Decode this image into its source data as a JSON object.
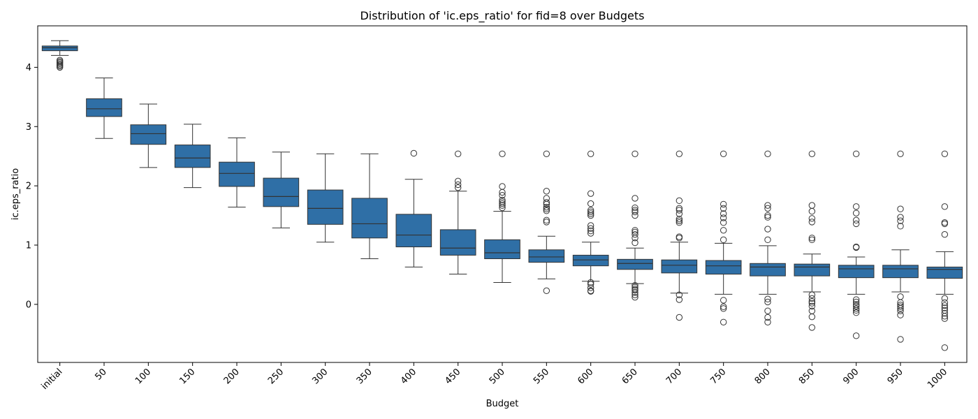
{
  "chart_data": {
    "type": "box",
    "title": "Distribution of 'ic.eps_ratio' for fid=8 over Budgets",
    "xlabel": "Budget",
    "ylabel": "ic.eps_ratio",
    "ylim": [
      -0.98,
      4.7
    ],
    "yticks": [
      "0",
      "1",
      "2",
      "3",
      "4"
    ],
    "box_color": "#2f6fa6",
    "line_color": "#333333",
    "categories": [
      "initial",
      "50",
      "100",
      "150",
      "200",
      "250",
      "300",
      "350",
      "400",
      "450",
      "500",
      "550",
      "600",
      "650",
      "700",
      "750",
      "800",
      "850",
      "900",
      "950",
      "1000"
    ],
    "boxes": [
      {
        "whislo": 4.2,
        "q1": 4.28,
        "med": 4.33,
        "q3": 4.36,
        "whishi": 4.45,
        "fliers": [
          4.12,
          4.1,
          4.08,
          4.06,
          4.04,
          4.02,
          4.0
        ]
      },
      {
        "whislo": 2.8,
        "q1": 3.17,
        "med": 3.3,
        "q3": 3.47,
        "whishi": 3.82,
        "fliers": []
      },
      {
        "whislo": 2.31,
        "q1": 2.7,
        "med": 2.88,
        "q3": 3.03,
        "whishi": 3.38,
        "fliers": []
      },
      {
        "whislo": 1.97,
        "q1": 2.31,
        "med": 2.47,
        "q3": 2.69,
        "whishi": 3.04,
        "fliers": []
      },
      {
        "whislo": 1.64,
        "q1": 1.99,
        "med": 2.21,
        "q3": 2.4,
        "whishi": 2.81,
        "fliers": []
      },
      {
        "whislo": 1.29,
        "q1": 1.65,
        "med": 1.82,
        "q3": 2.13,
        "whishi": 2.57,
        "fliers": []
      },
      {
        "whislo": 1.05,
        "q1": 1.35,
        "med": 1.62,
        "q3": 1.93,
        "whishi": 2.54,
        "fliers": []
      },
      {
        "whislo": 0.77,
        "q1": 1.12,
        "med": 1.36,
        "q3": 1.79,
        "whishi": 2.54,
        "fliers": []
      },
      {
        "whislo": 0.63,
        "q1": 0.97,
        "med": 1.17,
        "q3": 1.52,
        "whishi": 2.11,
        "fliers": [
          2.55
        ]
      },
      {
        "whislo": 0.51,
        "q1": 0.83,
        "med": 0.95,
        "q3": 1.26,
        "whishi": 1.91,
        "fliers": [
          2.54,
          2.08,
          2.02,
          1.97
        ]
      },
      {
        "whislo": 0.37,
        "q1": 0.77,
        "med": 0.87,
        "q3": 1.09,
        "whishi": 1.57,
        "fliers": [
          2.54,
          1.99,
          1.89,
          1.84,
          1.76,
          1.73,
          1.7,
          1.67,
          1.63
        ]
      },
      {
        "whislo": 0.43,
        "q1": 0.71,
        "med": 0.8,
        "q3": 0.92,
        "whishi": 1.15,
        "fliers": [
          2.54,
          1.91,
          1.79,
          1.72,
          1.69,
          1.64,
          1.61,
          1.58,
          1.42,
          1.39,
          0.23
        ]
      },
      {
        "whislo": 0.39,
        "q1": 0.65,
        "med": 0.75,
        "q3": 0.83,
        "whishi": 1.05,
        "fliers": [
          2.54,
          1.87,
          1.7,
          1.59,
          1.56,
          1.53,
          1.5,
          1.33,
          1.28,
          1.24,
          1.2,
          0.37,
          0.34,
          0.28,
          0.23,
          0.22
        ]
      },
      {
        "whislo": 0.35,
        "q1": 0.59,
        "med": 0.69,
        "q3": 0.76,
        "whishi": 0.95,
        "fliers": [
          2.54,
          1.79,
          1.63,
          1.59,
          1.56,
          1.5,
          1.25,
          1.22,
          1.18,
          1.12,
          1.04,
          0.32,
          0.29,
          0.26,
          0.24,
          0.2,
          0.16,
          0.12
        ]
      },
      {
        "whislo": 0.19,
        "q1": 0.53,
        "med": 0.66,
        "q3": 0.75,
        "whishi": 1.05,
        "fliers": [
          2.54,
          1.75,
          1.62,
          1.59,
          1.53,
          1.44,
          1.41,
          1.38,
          1.14,
          1.12,
          0.16,
          0.08,
          -0.22
        ]
      },
      {
        "whislo": 0.17,
        "q1": 0.51,
        "med": 0.65,
        "q3": 0.74,
        "whishi": 1.03,
        "fliers": [
          2.54,
          1.69,
          1.62,
          1.53,
          1.46,
          1.38,
          1.25,
          1.09,
          0.07,
          -0.04,
          -0.07,
          -0.3
        ]
      },
      {
        "whislo": 0.17,
        "q1": 0.48,
        "med": 0.63,
        "q3": 0.69,
        "whishi": 0.99,
        "fliers": [
          2.54,
          1.67,
          1.62,
          1.5,
          1.47,
          1.27,
          1.09,
          0.09,
          0.04,
          -0.11,
          -0.22,
          -0.3
        ]
      },
      {
        "whislo": 0.21,
        "q1": 0.48,
        "med": 0.63,
        "q3": 0.68,
        "whishi": 0.85,
        "fliers": [
          2.54,
          1.67,
          1.57,
          1.45,
          1.39,
          1.12,
          1.09,
          0.16,
          0.1,
          0.05,
          0.02,
          -0.03,
          -0.11,
          -0.21,
          -0.39
        ]
      },
      {
        "whislo": 0.17,
        "q1": 0.45,
        "med": 0.6,
        "q3": 0.66,
        "whishi": 0.8,
        "fliers": [
          2.54,
          1.65,
          1.54,
          1.42,
          1.36,
          0.97,
          0.96,
          0.08,
          0.04,
          0.0,
          -0.03,
          -0.07,
          -0.1,
          -0.14,
          -0.53
        ]
      },
      {
        "whislo": 0.21,
        "q1": 0.45,
        "med": 0.6,
        "q3": 0.66,
        "whishi": 0.92,
        "fliers": [
          2.54,
          1.61,
          1.47,
          1.41,
          1.32,
          0.13,
          0.03,
          -0.01,
          -0.04,
          -0.07,
          -0.11,
          -0.18,
          -0.59
        ]
      },
      {
        "whislo": 0.17,
        "q1": 0.44,
        "med": 0.59,
        "q3": 0.63,
        "whishi": 0.89,
        "fliers": [
          2.54,
          1.65,
          1.38,
          1.36,
          1.18,
          0.1,
          0.03,
          -0.02,
          -0.06,
          -0.1,
          -0.15,
          -0.2,
          -0.24,
          -0.73
        ]
      }
    ]
  }
}
